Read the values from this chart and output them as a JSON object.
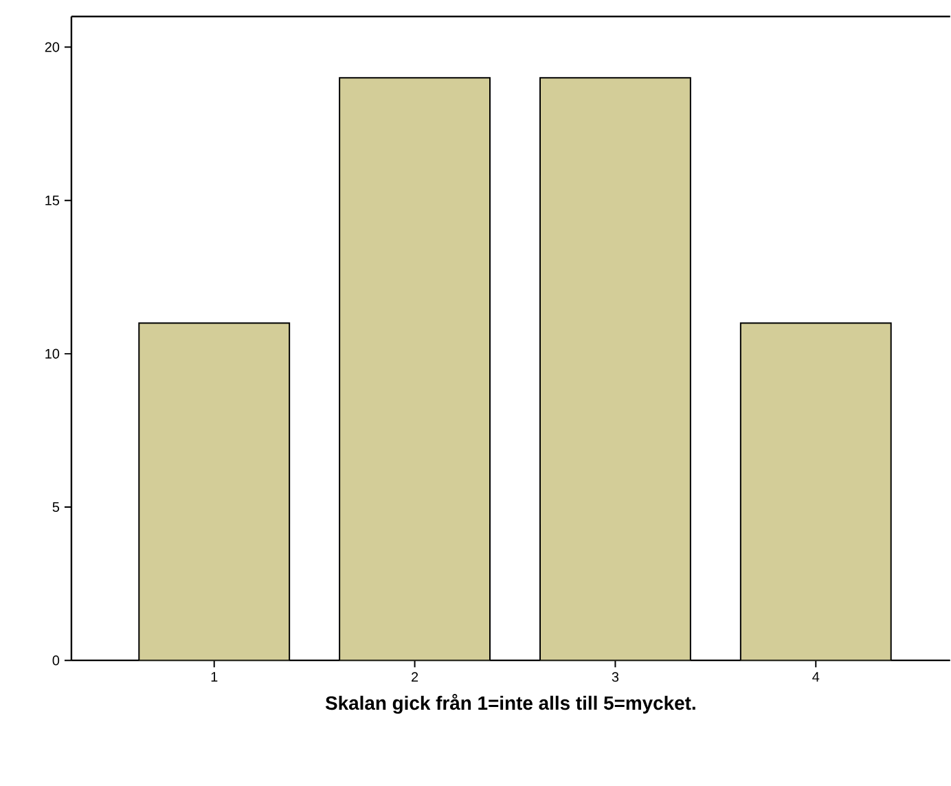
{
  "chart_data": {
    "type": "bar",
    "xlabel": "Skalan gick  från 1=inte alls till 5=mycket.",
    "categories": [
      "1",
      "2",
      "3",
      "4"
    ],
    "values": [
      11,
      19,
      19,
      11
    ],
    "color": "#d3cd98",
    "ylim": [
      0,
      21
    ],
    "yticks": [
      0,
      5,
      10,
      15,
      20
    ],
    "grid": false
  }
}
